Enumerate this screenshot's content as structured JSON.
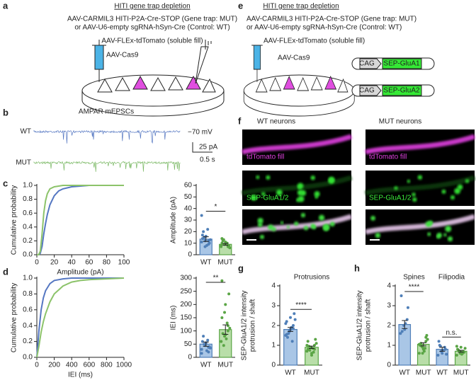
{
  "a": {
    "label": "a",
    "title": "HITI gene trap depletion",
    "lines": [
      "AAV-CARMIL3 HITI-P2A-Cre-STOP (Gene trap: MUT)",
      "or AAV-U6-empty sgRNA-hSyn-Cre (Control: WT)",
      "AAV-FLEx-tdTomato (soluble fill)"
    ],
    "injection": "AAV-Cas9"
  },
  "e": {
    "label": "e",
    "title": "HITI gene trap depletion",
    "lines": [
      "AAV-CARMIL3 HITI-P2A-Cre-STOP (Gene trap: MUT)",
      "or AAV-U6-empty sgRNA-hSyn-Cre (Control: WT)",
      "AAV-FLEx-tdTomato (soluble fill)"
    ],
    "injection": "AAV-Cas9",
    "constructs": [
      {
        "promoter": "CAG",
        "gene": "SEP-GluA1"
      },
      {
        "promoter": "CAG",
        "gene": "SEP-GluA2"
      }
    ]
  },
  "b": {
    "label": "b",
    "title": "AMPAR mEPSCs",
    "traces": [
      {
        "name": "WT",
        "color": "#5577c2"
      },
      {
        "name": "MUT",
        "color": "#79b863"
      }
    ],
    "holding": "−70 mV",
    "scale_y": "25 pA",
    "scale_x": "0.5 s"
  },
  "f": {
    "label": "f",
    "columns": [
      "WT neurons",
      "MUT neurons"
    ],
    "rows": [
      "tdTomato fill",
      "SEP-GluA1/2"
    ]
  },
  "chart_data": [
    {
      "type": "line",
      "label": "c",
      "x_label": "Amplitude (pA)",
      "y_label": "Cumulative probability",
      "x": [
        0,
        2,
        4,
        6,
        8,
        10,
        12,
        15,
        20,
        25,
        30,
        40,
        50,
        60,
        80,
        100
      ],
      "series": [
        {
          "color": "#5577c2",
          "values": [
            0,
            0,
            0.02,
            0.12,
            0.3,
            0.45,
            0.58,
            0.72,
            0.85,
            0.92,
            0.95,
            0.98,
            0.99,
            1,
            1,
            1
          ]
        },
        {
          "color": "#8cc36a",
          "values": [
            0,
            0,
            0.05,
            0.3,
            0.6,
            0.78,
            0.88,
            0.95,
            0.98,
            0.99,
            1,
            1,
            1,
            1,
            1,
            1
          ]
        }
      ],
      "xlim": [
        0,
        100
      ],
      "xticks": [
        0,
        20,
        40,
        60,
        80,
        100
      ],
      "ylim": [
        0,
        1
      ],
      "yticks": [
        {
          "value": 0,
          "label": "0.0"
        },
        {
          "value": 0.2,
          "label": "0.2"
        },
        {
          "value": 0.4,
          "label": "0.4"
        },
        {
          "value": 0.6,
          "label": "0.6"
        },
        {
          "value": 0.8,
          "label": "0.8"
        },
        {
          "value": 1,
          "label": "1.0"
        }
      ]
    },
    {
      "type": "bar",
      "y_label": "Amplitude (pA)",
      "categories": [
        "WT",
        "MUT"
      ],
      "values": [
        13.5,
        9
      ],
      "errors": [
        2,
        0.8
      ],
      "colors": [
        "#a9c6e6",
        "#b9dea9"
      ],
      "edge_colors": [
        "#4f7fb8",
        "#5aa545"
      ],
      "points": [
        [
          11,
          12,
          9,
          14,
          16,
          10,
          20,
          8,
          13,
          15,
          22,
          34,
          7,
          12,
          17
        ],
        [
          8,
          9,
          7,
          10,
          11,
          8,
          12,
          9,
          6,
          13,
          10,
          7,
          9,
          8,
          14
        ]
      ],
      "significance": [
        "*"
      ],
      "ylim": [
        0,
        60
      ],
      "yticks": [
        0,
        10,
        20,
        30,
        40,
        50,
        60
      ]
    },
    {
      "type": "line",
      "label": "d",
      "x_label": "IEI (ms)",
      "y_label": "Cumulative probability",
      "x": [
        0,
        25,
        50,
        75,
        100,
        150,
        200,
        300,
        400,
        500,
        600,
        800,
        1000
      ],
      "series": [
        {
          "color": "#5577c2",
          "values": [
            0,
            0.35,
            0.6,
            0.75,
            0.84,
            0.93,
            0.97,
            0.99,
            1,
            1,
            1,
            1,
            1
          ]
        },
        {
          "color": "#8cc36a",
          "values": [
            0,
            0.15,
            0.32,
            0.45,
            0.55,
            0.7,
            0.8,
            0.9,
            0.95,
            0.97,
            0.98,
            0.99,
            1
          ]
        }
      ],
      "xlim": [
        0,
        1000
      ],
      "xticks": [
        0,
        200,
        400,
        600,
        800,
        1000
      ],
      "ylim": [
        0,
        1
      ],
      "yticks": [
        {
          "value": 0,
          "label": "0.0"
        },
        {
          "value": 0.2,
          "label": "0.2"
        },
        {
          "value": 0.4,
          "label": "0.4"
        },
        {
          "value": 0.6,
          "label": "0.6"
        },
        {
          "value": 0.8,
          "label": "0.8"
        },
        {
          "value": 1,
          "label": "1.0"
        }
      ]
    },
    {
      "type": "bar",
      "y_label": "IEI (ms)",
      "categories": [
        "WT",
        "MUT"
      ],
      "values": [
        50,
        105
      ],
      "errors": [
        8,
        18
      ],
      "colors": [
        "#a9c6e6",
        "#b9dea9"
      ],
      "edge_colors": [
        "#4f7fb8",
        "#5aa545"
      ],
      "points": [
        [
          30,
          45,
          20,
          60,
          55,
          40,
          80,
          25,
          35,
          50,
          65,
          15,
          48,
          38
        ],
        [
          60,
          80,
          120,
          150,
          200,
          240,
          90,
          70,
          110,
          45,
          130,
          60,
          170,
          100,
          290,
          85
        ]
      ],
      "significance": [
        "**"
      ],
      "ylim": [
        0,
        300
      ],
      "yticks": [
        0,
        50,
        100,
        150,
        200,
        250,
        300
      ]
    },
    {
      "type": "bar",
      "label": "g",
      "subtitle": "Protrusions",
      "y_label": [
        "SEP-GluA1/2 intensity",
        "protrusion / shaft"
      ],
      "categories": [
        "WT",
        "MUT"
      ],
      "values": [
        1.8,
        0.9
      ],
      "errors": [
        0.1,
        0.06
      ],
      "colors": [
        "#a9c6e6",
        "#b9dea9"
      ],
      "edge_colors": [
        "#4f7fb8",
        "#5aa545"
      ],
      "points": [
        [
          1.5,
          1.7,
          2.0,
          2.2,
          1.8,
          2.6,
          1.4,
          1.9,
          2.3,
          1.6,
          1.2,
          2.1,
          1.75,
          1.85,
          1.55,
          2.4
        ],
        [
          0.7,
          0.9,
          1.0,
          0.8,
          0.6,
          1.3,
          0.95,
          0.85,
          1.1,
          0.75,
          0.65,
          1.0,
          0.9,
          0.8,
          1.2,
          0.5
        ]
      ],
      "significance": [
        "****"
      ],
      "ylim": [
        0,
        4
      ],
      "yticks": [
        0,
        1,
        2,
        3,
        4
      ]
    },
    {
      "type": "bar",
      "label": "h",
      "group_labels": [
        "Spines",
        "Filipodia"
      ],
      "y_label": [
        "SEP-GluA1/2 intensity",
        "protrusion / shaft"
      ],
      "categories": [
        "WT",
        "MUT",
        "WT",
        "MUT"
      ],
      "values": [
        2.05,
        1.05,
        0.8,
        0.7
      ],
      "errors": [
        0.2,
        0.08,
        0.1,
        0.05
      ],
      "colors": [
        "#a9c6e6",
        "#b9dea9",
        "#a9c6e6",
        "#b9dea9"
      ],
      "edge_colors": [
        "#4f7fb8",
        "#5aa545",
        "#4f7fb8",
        "#5aa545"
      ],
      "points": [
        [
          1.6,
          2.0,
          2.3,
          3.5,
          1.8,
          2.9,
          1.7,
          2.1
        ],
        [
          0.6,
          0.9,
          1.2,
          1.0,
          0.8,
          1.5,
          1.1,
          0.7,
          1.3,
          0.95,
          0.85,
          1.05,
          0.6,
          1.4
        ],
        [
          0.5,
          0.7,
          0.9,
          1.2,
          0.6,
          0.8,
          1.0,
          0.75,
          0.55,
          0.95
        ],
        [
          0.5,
          0.6,
          0.7,
          0.8,
          0.9,
          0.65,
          0.75,
          0.55,
          0.85,
          0.7,
          0.6,
          0.95
        ]
      ],
      "significance": [
        "****",
        "n.s."
      ],
      "ylim": [
        0,
        4
      ],
      "yticks": [
        0,
        1,
        2,
        3,
        4
      ]
    }
  ]
}
